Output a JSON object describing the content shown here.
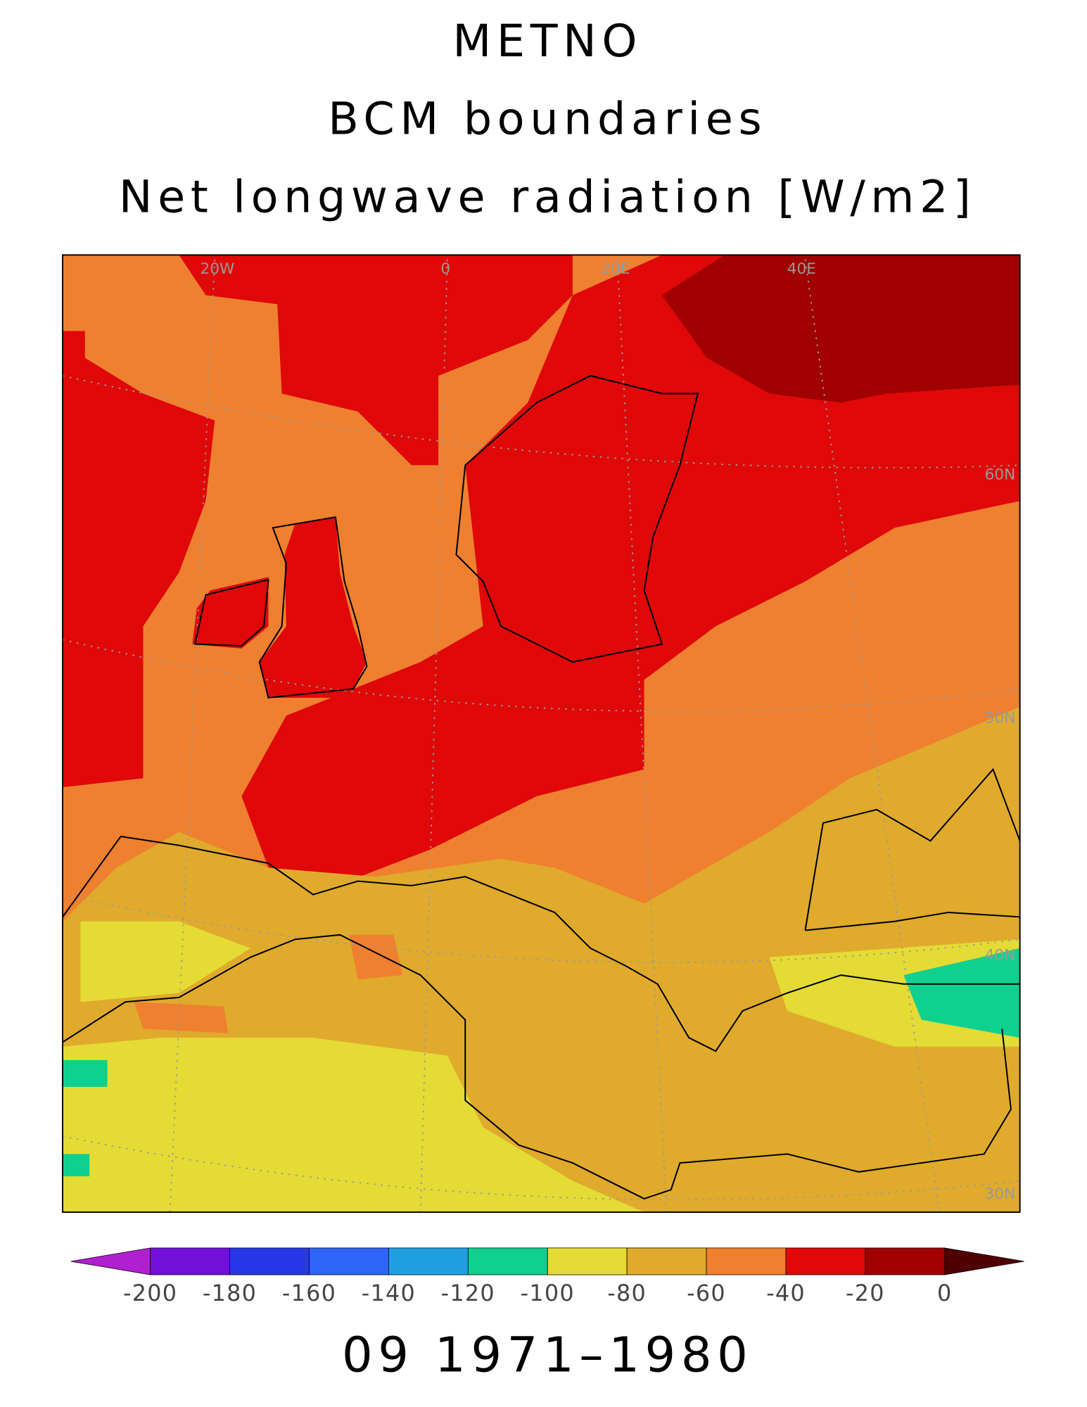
{
  "header": {
    "lines": [
      "METNO",
      "BCM boundaries",
      "Net longwave radiation [W/m2]"
    ]
  },
  "map": {
    "labels": [
      "20W",
      "0",
      "20E",
      "40E",
      "60N",
      "50N",
      "40N",
      "30N"
    ]
  },
  "colorbar": {
    "ticks": [
      -200,
      -180,
      -160,
      -140,
      -120,
      -100,
      -80,
      -60,
      -40,
      -20,
      0
    ],
    "colors": [
      "#b020d0",
      "#7010d8",
      "#2838e8",
      "#2e64f8",
      "#1ea0e0",
      "#10d090",
      "#e4dc34",
      "#e0aa2c",
      "#ee8030",
      "#e00808",
      "#a00000",
      "#500000"
    ]
  },
  "footer": {
    "period": "09 1971–1980"
  }
}
